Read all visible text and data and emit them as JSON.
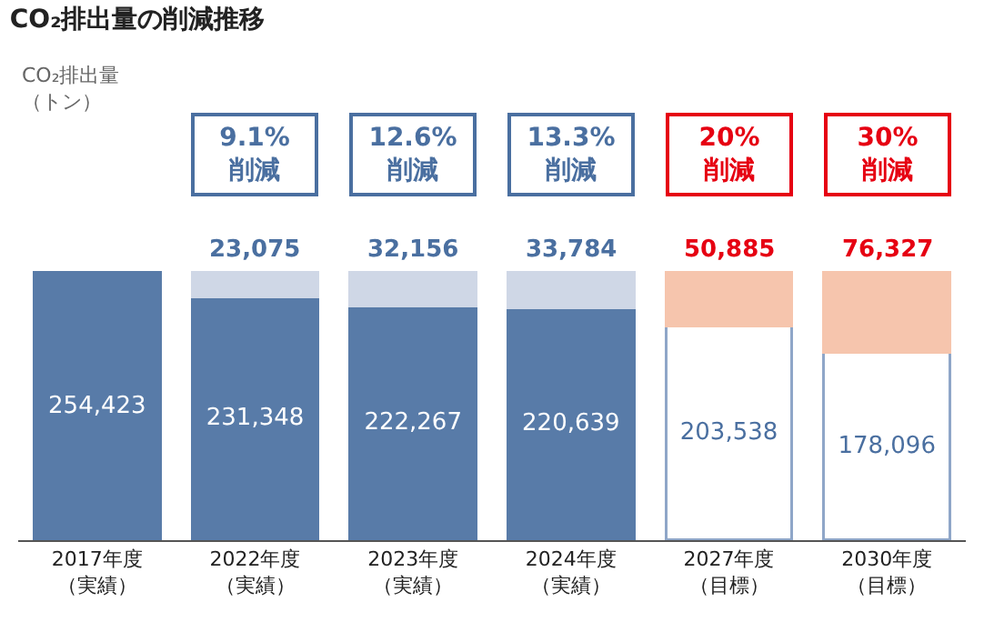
{
  "chart_data": {
    "type": "bar",
    "title": "CO₂排出量の削減推移",
    "categories": [
      "2017年度（実績）",
      "2022年度（実績）",
      "2023年度（実績）",
      "2024年度（実績）",
      "2027年度（目標）",
      "2030年度（目標）"
    ],
    "stacked": true,
    "tick_labels": "x",
    "series": [
      {
        "values": [
          254423,
          231348,
          222267,
          220639,
          203538,
          178096
        ],
        "value_labels": [
          "254,423",
          "231,348",
          "222,267",
          "220,639",
          "203,538",
          "178,096"
        ],
        "colors": [
          "#587ba8",
          "#587ba8",
          "#587ba8",
          "#587ba8",
          "#ffffff",
          "#ffffff"
        ]
      },
      {
        "values": [
          null,
          23075,
          32156,
          33784,
          50885,
          76327
        ],
        "value_labels": [
          null,
          "23,075",
          "32,156",
          "33,784",
          "50,885",
          "76,327"
        ],
        "colors": [
          "#cfd7e6",
          "#cfd7e6",
          "#cfd7e6",
          "#cfd7e6",
          "#f6c5ad",
          "#f6c5ad"
        ]
      }
    ],
    "annotations": [
      "CO₂排出量（トン）",
      "9.1%削減",
      "12.6%削減",
      "13.3%削減",
      "20%削減",
      "30%削減"
    ]
  }
}
